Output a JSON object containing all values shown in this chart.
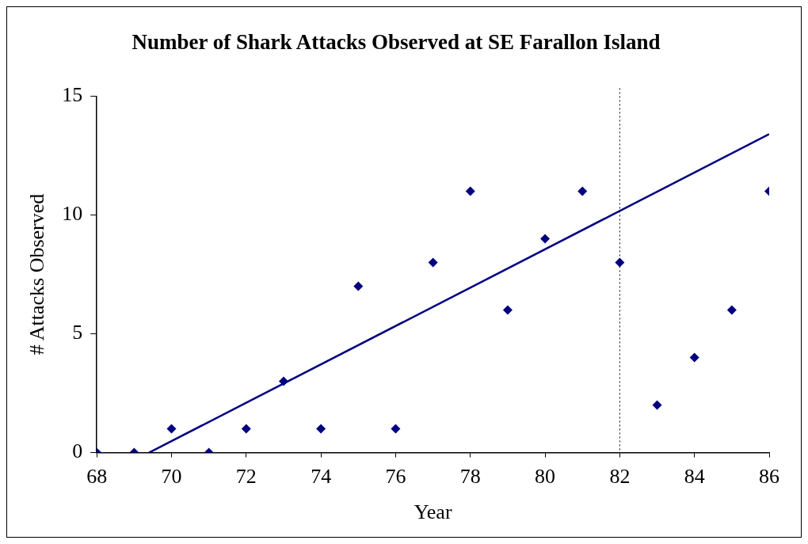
{
  "chart_data": {
    "type": "scatter",
    "title": "Number of Shark Attacks Observed at SE Farallon Island",
    "xlabel": "Year",
    "ylabel": "# Attacks Observed",
    "x": [
      68,
      69,
      70,
      71,
      72,
      73,
      74,
      75,
      76,
      77,
      78,
      79,
      80,
      81,
      82,
      83,
      84,
      85,
      86
    ],
    "series": [
      {
        "type": "scatter",
        "color": "#000080",
        "marker": "diamond",
        "values": [
          0,
          0,
          1,
          0,
          1,
          3,
          1,
          7,
          1,
          8,
          11,
          6,
          9,
          11,
          8,
          2,
          4,
          6,
          11
        ]
      },
      {
        "type": "line",
        "color": "#000080",
        "marker": "none",
        "line_style": "solid",
        "x": [
          69.4,
          86
        ],
        "values": [
          0,
          13.4
        ]
      }
    ],
    "xlim": [
      68,
      86
    ],
    "xticks": [
      68,
      70,
      72,
      74,
      76,
      78,
      80,
      82,
      84,
      86
    ],
    "ylim": [
      0,
      15
    ],
    "yticks": [
      0,
      5,
      10,
      15
    ],
    "grid": false,
    "legend": false,
    "ref_lines": [
      {
        "axis": "x",
        "value": 82,
        "color": "#000000",
        "line_style": "dotted"
      }
    ]
  }
}
